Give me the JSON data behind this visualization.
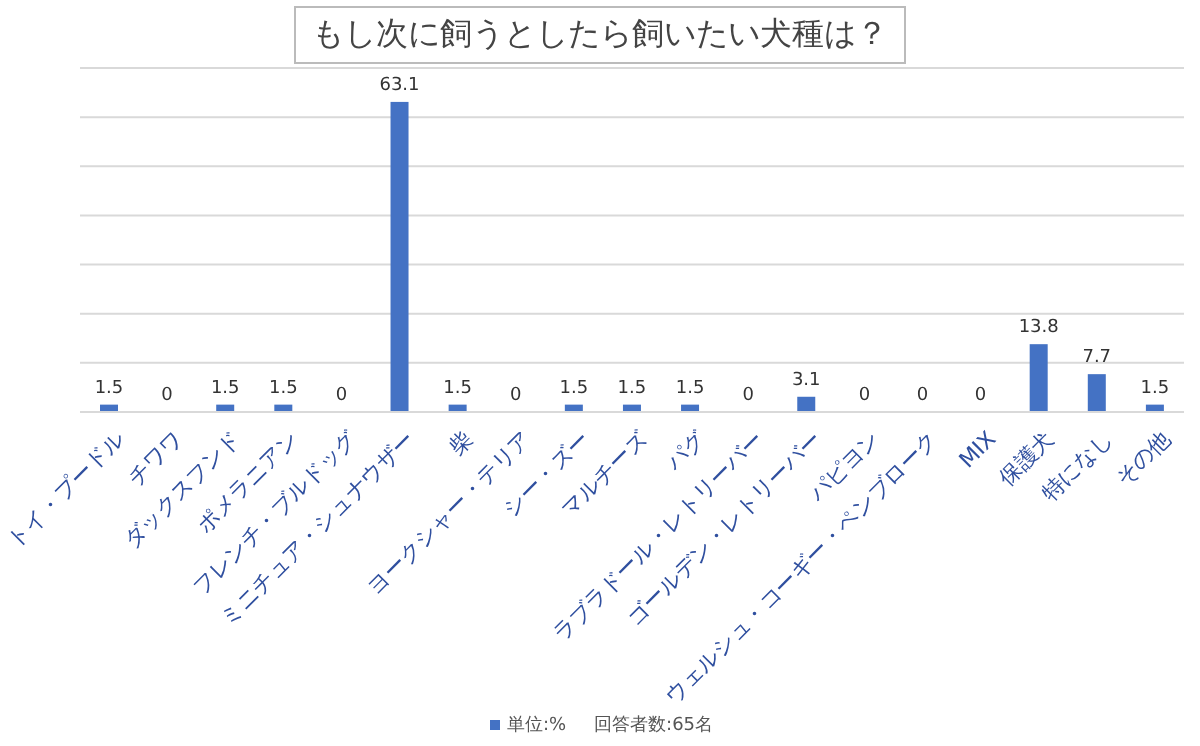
{
  "chart_data": {
    "type": "bar",
    "title": "もし次に飼うとしたら飼いたい犬種は？",
    "categories": [
      "トイ・プードル",
      "チワワ",
      "ダックスフンド",
      "ポメラニアン",
      "フレンチ・ブルドッグ",
      "ミニチュア・シュナウザー",
      "柴",
      "ヨークシャー・テリア",
      "シー・ズー",
      "マルチーズ",
      "パグ",
      "ラブラドール・レトリーバー",
      "ゴールデン・レトリーバー",
      "パピヨン",
      "ウェルシュ・コーギー・ペンブローク",
      "MIX",
      "保護犬",
      "特になし",
      "その他"
    ],
    "series": [
      {
        "name": "単位:%",
        "color": "#4472c4",
        "values": [
          1.5,
          0,
          1.5,
          1.5,
          0,
          63.1,
          1.5,
          0,
          1.5,
          1.5,
          1.5,
          0,
          3.1,
          0,
          0,
          0,
          13.8,
          7.7,
          1.5
        ]
      }
    ],
    "tick_labels": "x",
    "grid": "y",
    "data_labels": true,
    "legend": "bottom",
    "annotations": [
      "回答者数:65名"
    ]
  }
}
